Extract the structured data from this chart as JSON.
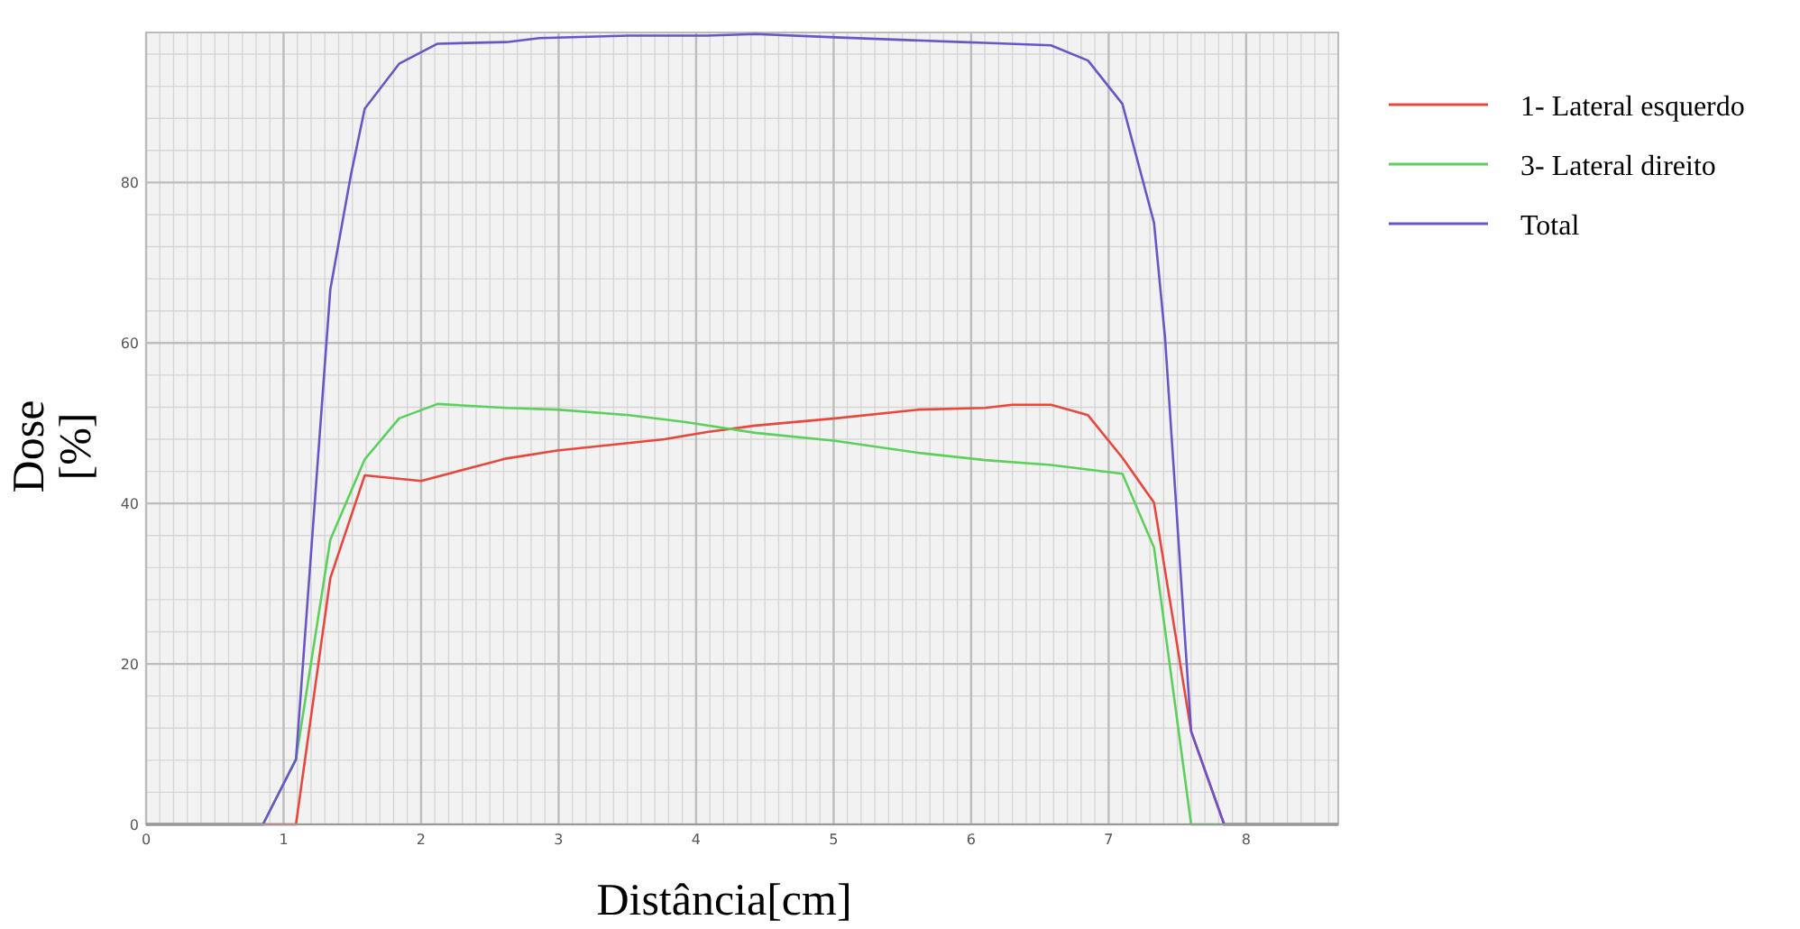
{
  "chart_data": {
    "type": "line",
    "xlabel": "Distância[cm]",
    "ylabel": "Dose [%]",
    "xlim": [
      0,
      8.67
    ],
    "ylim": [
      0,
      98.7
    ],
    "xticks": [
      0,
      1,
      2,
      3,
      4,
      5,
      6,
      7,
      8
    ],
    "yticks": [
      0,
      20,
      40,
      60,
      80
    ],
    "grid": true,
    "legend": "right",
    "line_style": "solid",
    "marker": "none",
    "series": [
      {
        "name": "1- Lateral esquerdo",
        "color": "#e8473e",
        "x": [
          0,
          1.09,
          1.34,
          1.59,
          2.0,
          2.62,
          2.99,
          3.77,
          4.08,
          4.43,
          5.01,
          5.62,
          6.1,
          6.3,
          6.58,
          6.85,
          7.1,
          7.33,
          7.6,
          7.84,
          8.67
        ],
        "values": [
          0,
          0,
          30.7,
          43.5,
          42.8,
          45.6,
          46.6,
          48,
          48.9,
          49.7,
          50.6,
          51.7,
          51.9,
          52.3,
          52.3,
          51,
          45.7,
          40.1,
          11.6,
          0,
          0
        ]
      },
      {
        "name": "3- Lateral direito",
        "color": "#5ccf5c",
        "x": [
          0,
          0.85,
          1.09,
          1.34,
          1.59,
          1.84,
          2.12,
          2.62,
          2.99,
          3.51,
          3.9,
          4.43,
          5.01,
          5.62,
          6.1,
          6.58,
          7.1,
          7.33,
          7.6,
          7.84,
          8.67
        ],
        "values": [
          0,
          0,
          8.1,
          35.5,
          45.5,
          50.6,
          52.4,
          51.9,
          51.7,
          51,
          50.2,
          48.8,
          47.8,
          46.3,
          45.4,
          44.8,
          43.7,
          34.5,
          0,
          0,
          0
        ]
      },
      {
        "name": "Total",
        "color": "#6a55c8",
        "x": [
          0,
          0.85,
          1.09,
          1.34,
          1.49,
          1.59,
          1.84,
          2.12,
          2.62,
          2.86,
          3.51,
          4.08,
          4.43,
          5.01,
          5.93,
          6.1,
          6.58,
          6.85,
          7.1,
          7.33,
          7.41,
          7.6,
          7.84,
          8.67
        ],
        "values": [
          0,
          0,
          8.1,
          66.7,
          81,
          89.2,
          94.8,
          97.3,
          97.5,
          98,
          98.3,
          98.3,
          98.5,
          98.1,
          97.5,
          97.4,
          97.1,
          95.2,
          89.8,
          75,
          60.7,
          11.6,
          0,
          0
        ]
      }
    ]
  }
}
